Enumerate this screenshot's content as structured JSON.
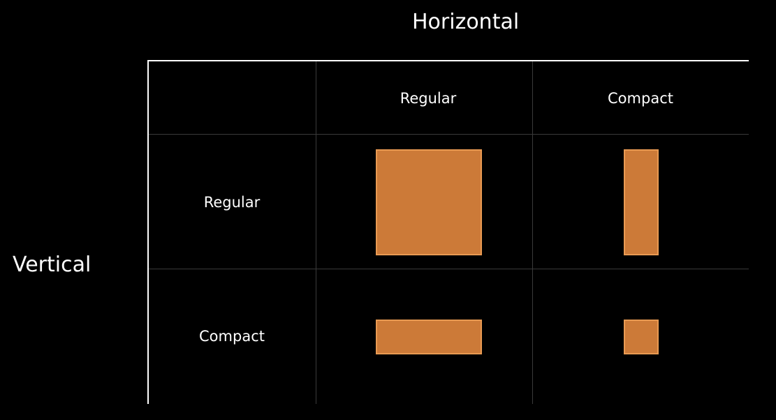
{
  "diagram": {
    "horizontal_title": "Horizontal",
    "vertical_title": "Vertical",
    "columns": [
      {
        "label": "Regular"
      },
      {
        "label": "Compact"
      }
    ],
    "rows": [
      {
        "label": "Regular"
      },
      {
        "label": "Compact"
      }
    ],
    "cells": [
      {
        "row": "Regular",
        "column": "Regular",
        "shape": "square"
      },
      {
        "row": "Regular",
        "column": "Compact",
        "shape": "tall-narrow"
      },
      {
        "row": "Compact",
        "column": "Regular",
        "shape": "wide-short"
      },
      {
        "row": "Compact",
        "column": "Compact",
        "shape": "small-square"
      }
    ],
    "colors": {
      "background": "#000000",
      "text": "#ffffff",
      "box_fill": "#cc7a38",
      "box_border": "#e99a52",
      "grid_line": "#3a3a3a",
      "axis_line": "#ffffff"
    }
  }
}
